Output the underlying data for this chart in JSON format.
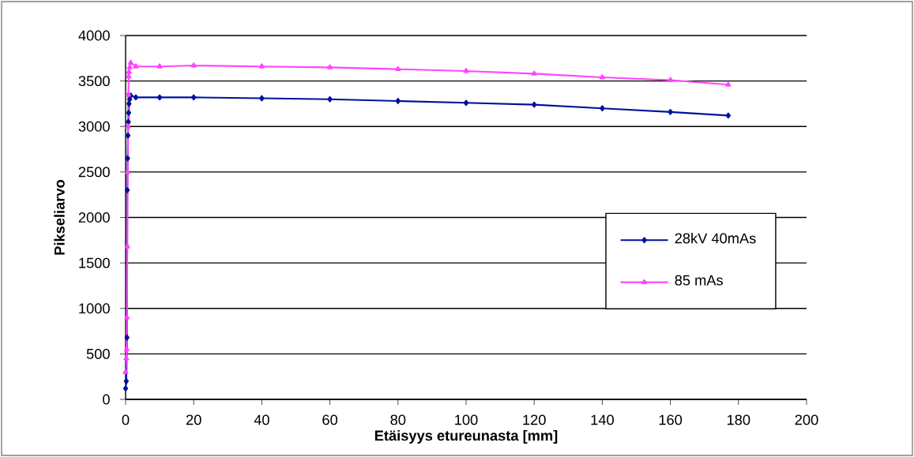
{
  "chart_data": {
    "type": "line",
    "xlabel": "Etäisyys etureunasta [mm]",
    "ylabel": "Pikseliarvo",
    "xlim": [
      0,
      200
    ],
    "xticks": [
      0,
      20,
      40,
      60,
      80,
      100,
      120,
      140,
      160,
      180,
      200
    ],
    "ylim": [
      0,
      4000
    ],
    "yticks": [
      0,
      500,
      1000,
      1500,
      2000,
      2500,
      3000,
      3500,
      4000
    ],
    "grid": "y",
    "legend": "right",
    "series": [
      {
        "name": "28kV 40mAs",
        "color": "#00129a",
        "marker": "diamond",
        "x": [
          0,
          0.2,
          0.4,
          0.5,
          0.6,
          0.7,
          0.8,
          0.9,
          1.0,
          1.2,
          1.5,
          3,
          10,
          20,
          40,
          60,
          80,
          100,
          120,
          140,
          160,
          177
        ],
        "values": [
          120,
          200,
          680,
          2300,
          2650,
          2900,
          3050,
          3150,
          3250,
          3300,
          3340,
          3320,
          3320,
          3320,
          3310,
          3300,
          3280,
          3260,
          3240,
          3200,
          3160,
          3120
        ]
      },
      {
        "name": "85 mAs",
        "color": "#ff44ff",
        "marker": "triangle",
        "x": [
          0,
          0.2,
          0.3,
          0.4,
          0.5,
          0.6,
          0.7,
          0.8,
          0.9,
          1.0,
          1.2,
          1.5,
          3,
          10,
          20,
          40,
          60,
          80,
          100,
          120,
          140,
          160,
          177
        ],
        "values": [
          300,
          450,
          550,
          900,
          1680,
          2500,
          3000,
          3350,
          3550,
          3600,
          3650,
          3700,
          3660,
          3660,
          3670,
          3660,
          3650,
          3630,
          3610,
          3580,
          3540,
          3510,
          3460
        ]
      }
    ]
  }
}
